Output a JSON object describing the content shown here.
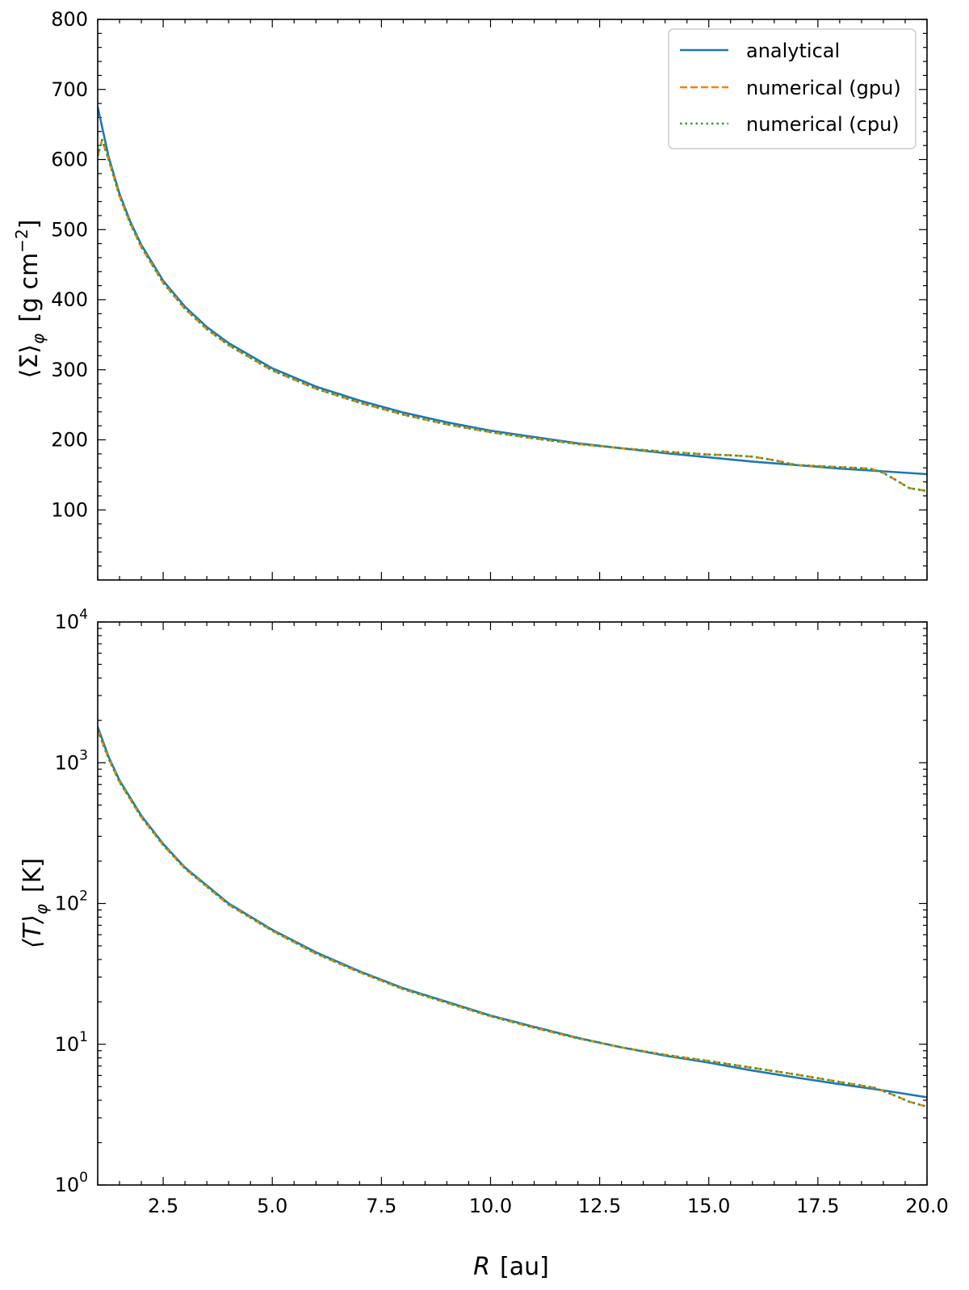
{
  "colors": {
    "analytical": "#1f77b4",
    "gpu": "#ff7f0e",
    "cpu": "#2ca02c",
    "legend_border": "#cccccc"
  },
  "chart_data": [
    {
      "type": "line",
      "ylabel": "⟨Σ⟩φ [g cm⁻²]",
      "ylabel_main": "⟨Σ⟩",
      "ylabel_sub": "φ",
      "ylabel_units_pre": "[g cm",
      "ylabel_units_sup": "−2",
      "ylabel_units_post": "]",
      "xlim": [
        1.0,
        20.0
      ],
      "ylim": [
        0,
        800
      ],
      "xticks": [
        2.5,
        5.0,
        7.5,
        10.0,
        12.5,
        15.0,
        17.5,
        20.0
      ],
      "yticks": [
        {
          "value": 100,
          "label": "100"
        },
        {
          "value": 200,
          "label": "200"
        },
        {
          "value": 300,
          "label": "300"
        },
        {
          "value": 400,
          "label": "400"
        },
        {
          "value": 500,
          "label": "500"
        },
        {
          "value": 600,
          "label": "600"
        },
        {
          "value": 700,
          "label": "700"
        },
        {
          "value": 800,
          "label": "800"
        }
      ],
      "legend": {
        "placement": "top-right",
        "entries": [
          {
            "key": "analytical",
            "label": "analytical"
          },
          {
            "key": "gpu",
            "label": "numerical (gpu)"
          },
          {
            "key": "cpu",
            "label": "numerical (cpu)"
          }
        ]
      },
      "series": [
        {
          "key": "analytical",
          "style": "solid",
          "x": [
            1.0,
            1.25,
            1.5,
            1.75,
            2.0,
            2.5,
            3.0,
            3.5,
            4.0,
            5.0,
            6.0,
            7.0,
            8.0,
            9.0,
            10.0,
            11.0,
            12.0,
            13.0,
            14.0,
            15.0,
            16.0,
            17.0,
            18.0,
            19.0,
            20.0
          ],
          "y": [
            675,
            604,
            551,
            511,
            478,
            427,
            390,
            361,
            338,
            302,
            276,
            256,
            239,
            225,
            213,
            204,
            195,
            188,
            181,
            175,
            169,
            164,
            159,
            155,
            151
          ]
        },
        {
          "key": "gpu",
          "style": "dashed",
          "x": [
            1.0,
            1.1,
            1.25,
            1.5,
            1.75,
            2.0,
            2.5,
            3.0,
            3.5,
            4.0,
            5.0,
            6.0,
            7.0,
            8.0,
            9.0,
            10.0,
            11.0,
            12.0,
            13.0,
            14.0,
            15.0,
            15.5,
            16.0,
            16.5,
            17.0,
            18.0,
            18.7,
            19.0,
            19.3,
            19.6,
            20.0
          ],
          "y": [
            605,
            628,
            600,
            548,
            508,
            475,
            424,
            387,
            358,
            335,
            299,
            273,
            253,
            236,
            222,
            211,
            202,
            194,
            188,
            183,
            179,
            178,
            176,
            171,
            164,
            161,
            159,
            153,
            142,
            131,
            127
          ]
        },
        {
          "key": "cpu",
          "style": "dotted",
          "x": [
            1.0,
            1.1,
            1.25,
            1.5,
            1.75,
            2.0,
            2.5,
            3.0,
            3.5,
            4.0,
            5.0,
            6.0,
            7.0,
            8.0,
            9.0,
            10.0,
            11.0,
            12.0,
            13.0,
            14.0,
            15.0,
            15.5,
            16.0,
            16.5,
            17.0,
            18.0,
            18.7,
            19.0,
            19.3,
            19.6,
            20.0
          ],
          "y": [
            605,
            628,
            600,
            548,
            508,
            475,
            424,
            387,
            358,
            335,
            299,
            273,
            253,
            236,
            222,
            211,
            202,
            194,
            188,
            183,
            179,
            178,
            176,
            171,
            164,
            161,
            159,
            153,
            142,
            131,
            127
          ]
        }
      ]
    },
    {
      "type": "line",
      "ylabel": "⟨T⟩φ [K]",
      "ylabel_main": "⟨T⟩",
      "ylabel_sub": "φ",
      "ylabel_units": "[K]",
      "xlabel": "R [au]",
      "xlabel_var": "R",
      "xlabel_units": "[au]",
      "yscale": "log",
      "xlim": [
        1.0,
        20.0
      ],
      "ylim": [
        1,
        10000
      ],
      "xticks": [
        {
          "value": 2.5,
          "label": "2.5"
        },
        {
          "value": 5.0,
          "label": "5.0"
        },
        {
          "value": 7.5,
          "label": "7.5"
        },
        {
          "value": 10.0,
          "label": "10.0"
        },
        {
          "value": 12.5,
          "label": "12.5"
        },
        {
          "value": 15.0,
          "label": "15.0"
        },
        {
          "value": 17.5,
          "label": "17.5"
        },
        {
          "value": 20.0,
          "label": "20.0"
        }
      ],
      "yticks": [
        {
          "value": 1,
          "base": "10",
          "exp": "0"
        },
        {
          "value": 10,
          "base": "10",
          "exp": "1"
        },
        {
          "value": 100,
          "base": "10",
          "exp": "2"
        },
        {
          "value": 1000,
          "base": "10",
          "exp": "3"
        },
        {
          "value": 10000,
          "base": "10",
          "exp": "4"
        }
      ],
      "series": [
        {
          "key": "analytical",
          "style": "solid",
          "x": [
            1.0,
            1.25,
            1.5,
            2.0,
            2.5,
            3.0,
            4.0,
            5.0,
            6.0,
            7.0,
            8.0,
            9.0,
            10.0,
            11.0,
            12.0,
            13.0,
            14.0,
            15.0,
            16.0,
            17.0,
            18.0,
            19.0,
            20.0
          ],
          "y": [
            1800,
            1100,
            750,
            420,
            265,
            180,
            100,
            65,
            45,
            33,
            25,
            20,
            16,
            13.3,
            11.1,
            9.5,
            8.3,
            7.4,
            6.5,
            5.8,
            5.2,
            4.7,
            4.2
          ]
        },
        {
          "key": "gpu",
          "style": "dashed",
          "x": [
            1.0,
            1.25,
            1.5,
            2.0,
            2.5,
            3.0,
            4.0,
            5.0,
            6.0,
            7.0,
            8.0,
            9.0,
            10.0,
            11.0,
            12.0,
            13.0,
            14.0,
            15.0,
            16.0,
            17.0,
            18.0,
            18.8,
            19.2,
            19.6,
            20.0
          ],
          "y": [
            1700,
            1070,
            730,
            410,
            260,
            177,
            98,
            64,
            44,
            32.5,
            24.6,
            19.7,
            15.8,
            13.1,
            11.0,
            9.5,
            8.4,
            7.6,
            6.8,
            6.1,
            5.4,
            4.9,
            4.4,
            3.9,
            3.6
          ]
        },
        {
          "key": "cpu",
          "style": "dotted",
          "x": [
            1.0,
            1.25,
            1.5,
            2.0,
            2.5,
            3.0,
            4.0,
            5.0,
            6.0,
            7.0,
            8.0,
            9.0,
            10.0,
            11.0,
            12.0,
            13.0,
            14.0,
            15.0,
            16.0,
            17.0,
            18.0,
            18.8,
            19.2,
            19.6,
            20.0
          ],
          "y": [
            1700,
            1070,
            730,
            410,
            260,
            177,
            98,
            64,
            44,
            32.5,
            24.6,
            19.7,
            15.8,
            13.1,
            11.0,
            9.5,
            8.4,
            7.6,
            6.8,
            6.1,
            5.4,
            4.9,
            4.4,
            3.9,
            3.6
          ]
        }
      ]
    }
  ]
}
